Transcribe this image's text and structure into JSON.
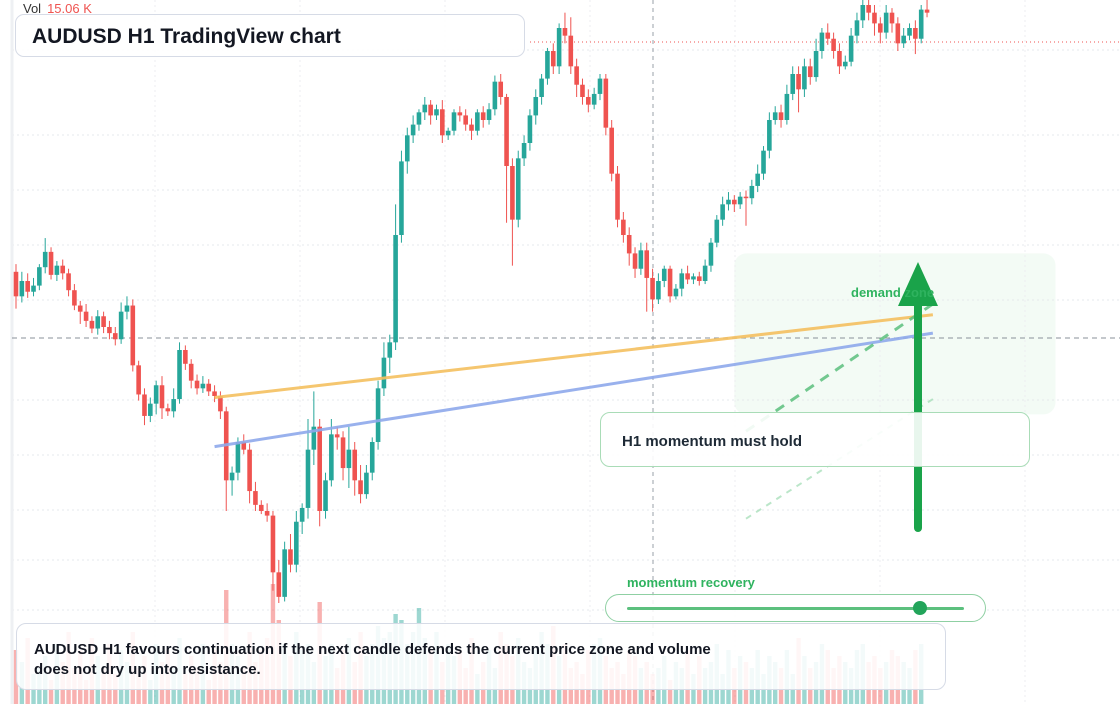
{
  "header": {
    "vol_label": "Vol",
    "vol_value": "15.06 K"
  },
  "title": "AUDUSD H1 TradingView chart",
  "annotations": {
    "callout": "H1 momentum must hold",
    "demand_label": "demand zone",
    "momentum_label": "momentum recovery",
    "momentum_level": 0.87,
    "note": "AUDUSD H1 favours continuation if the next candle defends the current price zone and volume does not dry up into resistance."
  },
  "colors": {
    "up": "#26a69a",
    "down": "#ef5350",
    "support_upper": "#f5c060",
    "support_lower": "#8fa9ec",
    "accent": "#1aa34a"
  },
  "icons": {
    "arrow": "arrow-up-icon"
  },
  "chart_data": {
    "type": "candlestick",
    "symbol": "AUDUSD",
    "timeframe": "H1",
    "ohlc": [
      [
        0.6656,
        0.664,
        0.6632,
        0.6661
      ],
      [
        0.664,
        0.665,
        0.6636,
        0.6656
      ],
      [
        0.665,
        0.6643,
        0.6639,
        0.6655
      ],
      [
        0.6643,
        0.6647,
        0.664,
        0.6652
      ],
      [
        0.6647,
        0.6659,
        0.6644,
        0.6661
      ],
      [
        0.6659,
        0.6669,
        0.6655,
        0.6678
      ],
      [
        0.6669,
        0.6654,
        0.6651,
        0.6672
      ],
      [
        0.6654,
        0.666,
        0.665,
        0.6663
      ],
      [
        0.666,
        0.6655,
        0.6651,
        0.6664
      ],
      [
        0.6655,
        0.6644,
        0.664,
        0.6658
      ],
      [
        0.6644,
        0.6634,
        0.6631,
        0.6648
      ],
      [
        0.6634,
        0.663,
        0.6622,
        0.6637
      ],
      [
        0.663,
        0.6624,
        0.662,
        0.6635
      ],
      [
        0.6624,
        0.6619,
        0.6616,
        0.6627
      ],
      [
        0.6619,
        0.6627,
        0.6615,
        0.6631
      ],
      [
        0.6627,
        0.662,
        0.6616,
        0.663
      ],
      [
        0.662,
        0.6616,
        0.6612,
        0.6624
      ],
      [
        0.6616,
        0.6612,
        0.6608,
        0.662
      ],
      [
        0.6612,
        0.663,
        0.6609,
        0.6636
      ],
      [
        0.663,
        0.6634,
        0.6625,
        0.664
      ],
      [
        0.6634,
        0.6595,
        0.6591,
        0.6638
      ],
      [
        0.6595,
        0.6576,
        0.6572,
        0.6598
      ],
      [
        0.6576,
        0.6562,
        0.6556,
        0.658
      ],
      [
        0.6562,
        0.657,
        0.6558,
        0.6574
      ],
      [
        0.657,
        0.6582,
        0.6563,
        0.6585
      ],
      [
        0.6582,
        0.6567,
        0.656,
        0.6588
      ],
      [
        0.6567,
        0.6565,
        0.6562,
        0.657
      ],
      [
        0.6565,
        0.6573,
        0.6561,
        0.658
      ],
      [
        0.6573,
        0.6605,
        0.657,
        0.661
      ],
      [
        0.6605,
        0.6596,
        0.6592,
        0.6608
      ],
      [
        0.6596,
        0.6585,
        0.658,
        0.6599
      ],
      [
        0.6585,
        0.658,
        0.6576,
        0.6589
      ],
      [
        0.658,
        0.6583,
        0.6577,
        0.6588
      ],
      [
        0.6583,
        0.6578,
        0.6575,
        0.6586
      ],
      [
        0.6578,
        0.6575,
        0.6571,
        0.6582
      ],
      [
        0.6575,
        0.6565,
        0.656,
        0.6578
      ],
      [
        0.6565,
        0.652,
        0.65,
        0.6568
      ],
      [
        0.652,
        0.6525,
        0.651,
        0.6529
      ],
      [
        0.6525,
        0.6545,
        0.652,
        0.6548
      ],
      [
        0.6545,
        0.654,
        0.6537,
        0.655
      ],
      [
        0.654,
        0.6513,
        0.6505,
        0.6544
      ],
      [
        0.6513,
        0.6504,
        0.65,
        0.6519
      ],
      [
        0.6504,
        0.65,
        0.6498,
        0.6507
      ],
      [
        0.65,
        0.6497,
        0.6493,
        0.6505
      ],
      [
        0.6497,
        0.646,
        0.6448,
        0.65
      ],
      [
        0.646,
        0.6444,
        0.644,
        0.6468
      ],
      [
        0.6444,
        0.6475,
        0.6441,
        0.648
      ],
      [
        0.6475,
        0.6465,
        0.646,
        0.6485
      ],
      [
        0.6465,
        0.6493,
        0.646,
        0.65
      ],
      [
        0.6493,
        0.6502,
        0.6485,
        0.6505
      ],
      [
        0.6502,
        0.654,
        0.6495,
        0.656
      ],
      [
        0.654,
        0.6555,
        0.653,
        0.6578
      ],
      [
        0.6555,
        0.65,
        0.649,
        0.656
      ],
      [
        0.65,
        0.652,
        0.6495,
        0.6525
      ],
      [
        0.652,
        0.655,
        0.6516,
        0.656
      ],
      [
        0.655,
        0.6548,
        0.654,
        0.6555
      ],
      [
        0.6548,
        0.6528,
        0.652,
        0.6552
      ],
      [
        0.6528,
        0.654,
        0.6515,
        0.6555
      ],
      [
        0.654,
        0.652,
        0.651,
        0.6545
      ],
      [
        0.652,
        0.6511,
        0.6505,
        0.653
      ],
      [
        0.6511,
        0.6525,
        0.6508,
        0.653
      ],
      [
        0.6525,
        0.6545,
        0.652,
        0.6548
      ],
      [
        0.6545,
        0.658,
        0.654,
        0.6585
      ],
      [
        0.658,
        0.66,
        0.6575,
        0.661
      ],
      [
        0.66,
        0.661,
        0.659,
        0.6615
      ],
      [
        0.661,
        0.668,
        0.6605,
        0.67
      ],
      [
        0.668,
        0.6728,
        0.6675,
        0.6735
      ],
      [
        0.6728,
        0.6745,
        0.672,
        0.675
      ],
      [
        0.6745,
        0.6752,
        0.674,
        0.6758
      ],
      [
        0.6752,
        0.676,
        0.6748,
        0.6762
      ],
      [
        0.676,
        0.6765,
        0.6755,
        0.677
      ],
      [
        0.6765,
        0.6758,
        0.6752,
        0.6768
      ],
      [
        0.6758,
        0.6762,
        0.6755,
        0.6765
      ],
      [
        0.6762,
        0.6745,
        0.674,
        0.6768
      ],
      [
        0.6745,
        0.6748,
        0.6742,
        0.675
      ],
      [
        0.6748,
        0.676,
        0.6745,
        0.6762
      ],
      [
        0.676,
        0.6758,
        0.6754,
        0.6764
      ],
      [
        0.6758,
        0.6752,
        0.6748,
        0.6762
      ],
      [
        0.6752,
        0.6748,
        0.6742,
        0.6756
      ],
      [
        0.6748,
        0.676,
        0.6745,
        0.6762
      ],
      [
        0.676,
        0.6755,
        0.675,
        0.6764
      ],
      [
        0.6755,
        0.6762,
        0.6752,
        0.6766
      ],
      [
        0.6762,
        0.678,
        0.6758,
        0.6784
      ],
      [
        0.678,
        0.677,
        0.6765,
        0.6785
      ],
      [
        0.677,
        0.6725,
        0.6688,
        0.6772
      ],
      [
        0.6725,
        0.669,
        0.666,
        0.673
      ],
      [
        0.669,
        0.673,
        0.6685,
        0.6735
      ],
      [
        0.673,
        0.674,
        0.6725,
        0.6745
      ],
      [
        0.674,
        0.6758,
        0.6735,
        0.6762
      ],
      [
        0.6758,
        0.677,
        0.6752,
        0.6775
      ],
      [
        0.677,
        0.6782,
        0.6765,
        0.6785
      ],
      [
        0.6782,
        0.68,
        0.6778,
        0.6802
      ],
      [
        0.68,
        0.679,
        0.6785,
        0.6805
      ],
      [
        0.679,
        0.6815,
        0.6785,
        0.6818
      ],
      [
        0.6815,
        0.681,
        0.6805,
        0.6825
      ],
      [
        0.681,
        0.679,
        0.6785,
        0.6822
      ],
      [
        0.679,
        0.6778,
        0.677,
        0.6795
      ],
      [
        0.6778,
        0.677,
        0.6765,
        0.6782
      ],
      [
        0.677,
        0.6765,
        0.676,
        0.6775
      ],
      [
        0.6765,
        0.6772,
        0.6762,
        0.6776
      ],
      [
        0.6772,
        0.6782,
        0.6768,
        0.6785
      ],
      [
        0.6782,
        0.675,
        0.6745,
        0.6785
      ],
      [
        0.675,
        0.672,
        0.6715,
        0.6755
      ],
      [
        0.672,
        0.669,
        0.6685,
        0.6725
      ],
      [
        0.669,
        0.668,
        0.6675,
        0.6695
      ],
      [
        0.668,
        0.6668,
        0.666,
        0.6685
      ],
      [
        0.6668,
        0.6658,
        0.6652,
        0.6672
      ],
      [
        0.6658,
        0.667,
        0.6654,
        0.6675
      ],
      [
        0.667,
        0.6652,
        0.663,
        0.6675
      ],
      [
        0.6652,
        0.6638,
        0.663,
        0.6658
      ],
      [
        0.6638,
        0.665,
        0.6635,
        0.6655
      ],
      [
        0.665,
        0.6658,
        0.6646,
        0.666
      ],
      [
        0.6658,
        0.664,
        0.6636,
        0.666
      ],
      [
        0.664,
        0.6645,
        0.6638,
        0.6648
      ],
      [
        0.6645,
        0.6655,
        0.664,
        0.6658
      ],
      [
        0.6655,
        0.6651,
        0.6648,
        0.666
      ],
      [
        0.6651,
        0.6653,
        0.6648,
        0.6655
      ],
      [
        0.6653,
        0.665,
        0.6647,
        0.6656
      ],
      [
        0.665,
        0.666,
        0.6648,
        0.6664
      ],
      [
        0.666,
        0.6675,
        0.6656,
        0.6678
      ],
      [
        0.6675,
        0.669,
        0.6672,
        0.6693
      ],
      [
        0.669,
        0.67,
        0.6686,
        0.6705
      ],
      [
        0.67,
        0.6703,
        0.6696,
        0.6708
      ],
      [
        0.6703,
        0.67,
        0.6695,
        0.6706
      ],
      [
        0.67,
        0.6705,
        0.6697,
        0.6708
      ],
      [
        0.6705,
        0.6704,
        0.6686,
        0.6709
      ],
      [
        0.6704,
        0.6712,
        0.67,
        0.6716
      ],
      [
        0.6712,
        0.672,
        0.6708,
        0.6726
      ],
      [
        0.672,
        0.6735,
        0.6716,
        0.6738
      ],
      [
        0.6735,
        0.6755,
        0.673,
        0.676
      ],
      [
        0.6755,
        0.676,
        0.6752,
        0.6764
      ],
      [
        0.676,
        0.6755,
        0.675,
        0.6765
      ],
      [
        0.6755,
        0.6772,
        0.6752,
        0.6778
      ],
      [
        0.6772,
        0.6785,
        0.6768,
        0.679
      ],
      [
        0.6785,
        0.6775,
        0.676,
        0.679
      ],
      [
        0.6775,
        0.679,
        0.677,
        0.6795
      ],
      [
        0.679,
        0.6783,
        0.6778,
        0.6795
      ],
      [
        0.6783,
        0.68,
        0.678,
        0.6808
      ],
      [
        0.68,
        0.6812,
        0.6795,
        0.6815
      ],
      [
        0.6812,
        0.6808,
        0.6804,
        0.6818
      ],
      [
        0.6808,
        0.68,
        0.6795,
        0.6812
      ],
      [
        0.68,
        0.679,
        0.6785,
        0.6805
      ],
      [
        0.679,
        0.6793,
        0.6788,
        0.6797
      ],
      [
        0.6793,
        0.681,
        0.679,
        0.6815
      ],
      [
        0.681,
        0.682,
        0.6805,
        0.6825
      ],
      [
        0.682,
        0.683,
        0.6815,
        0.6838
      ],
      [
        0.683,
        0.6825,
        0.682,
        0.6835
      ],
      [
        0.6825,
        0.6818,
        0.681,
        0.683
      ],
      [
        0.6818,
        0.6812,
        0.6805,
        0.6822
      ],
      [
        0.6812,
        0.6825,
        0.6808,
        0.683
      ],
      [
        0.6825,
        0.6818,
        0.6812,
        0.6828
      ],
      [
        0.6818,
        0.6805,
        0.68,
        0.6822
      ],
      [
        0.6805,
        0.681,
        0.6802,
        0.6815
      ],
      [
        0.681,
        0.6815,
        0.6807,
        0.6818
      ],
      [
        0.6815,
        0.6808,
        0.6798,
        0.682
      ],
      [
        0.6808,
        0.6827,
        0.6805,
        0.683
      ],
      [
        0.6827,
        0.6825,
        0.6822,
        0.6835
      ]
    ],
    "volume": [
      0.45,
      0.35,
      0.55,
      0.25,
      0.3,
      0.4,
      0.2,
      0.5,
      0.35,
      0.6,
      0.3,
      0.45,
      0.2,
      0.55,
      0.4,
      0.3,
      0.5,
      0.25,
      0.45,
      0.35,
      0.6,
      0.3,
      0.4,
      0.2,
      0.5,
      0.35,
      0.45,
      0.3,
      0.55,
      0.25,
      0.4,
      0.3,
      0.5,
      0.2,
      0.45,
      0.35,
      0.95,
      0.5,
      0.4,
      0.3,
      0.6,
      0.35,
      0.45,
      0.55,
      1.0,
      0.7,
      0.5,
      0.4,
      0.6,
      0.45,
      0.5,
      0.35,
      0.85,
      0.4,
      0.5,
      0.3,
      0.45,
      0.55,
      0.35,
      0.6,
      0.4,
      0.5,
      0.65,
      0.55,
      0.6,
      0.75,
      0.7,
      0.5,
      0.6,
      0.8,
      0.55,
      0.45,
      0.6,
      0.35,
      0.5,
      0.4,
      0.45,
      0.3,
      0.55,
      0.25,
      0.35,
      0.45,
      0.3,
      0.6,
      0.5,
      0.4,
      0.55,
      0.35,
      0.3,
      0.45,
      0.6,
      0.5,
      0.65,
      0.4,
      0.5,
      0.3,
      0.35,
      0.25,
      0.45,
      0.5,
      0.55,
      0.4,
      0.3,
      0.35,
      0.25,
      0.45,
      0.4,
      0.3,
      0.35,
      0.25,
      0.3,
      0.4,
      0.2,
      0.35,
      0.3,
      0.45,
      0.25,
      0.4,
      0.3,
      0.35,
      0.5,
      0.25,
      0.45,
      0.3,
      0.4,
      0.35,
      0.3,
      0.45,
      0.25,
      0.4,
      0.35,
      0.3,
      0.45,
      0.25,
      0.55,
      0.4,
      0.3,
      0.35,
      0.5,
      0.45,
      0.3,
      0.4,
      0.35,
      0.3,
      0.45,
      0.5,
      0.35,
      0.4,
      0.3,
      0.35,
      0.45,
      0.4,
      0.35,
      0.3,
      0.45,
      0.5
    ],
    "volume_max": 15.06,
    "volume_unit": "K",
    "price_range": [
      0.638,
      0.683
    ],
    "guides": [
      {
        "type": "support",
        "start": [
          34,
          0.6574
        ],
        "end": [
          157,
          0.6628
        ]
      },
      {
        "type": "support",
        "start": [
          34,
          0.6542
        ],
        "end": [
          157,
          0.6616
        ]
      },
      {
        "type": "trend",
        "start": [
          125,
          0.6552
        ],
        "end": [
          157,
          0.6635
        ]
      },
      {
        "type": "trend",
        "start": [
          125,
          0.6495
        ],
        "end": [
          157,
          0.6573
        ]
      }
    ],
    "zone": {
      "from_index": 123,
      "to_index": 178,
      "high": 0.6668,
      "low": 0.6563
    },
    "grid": true
  }
}
